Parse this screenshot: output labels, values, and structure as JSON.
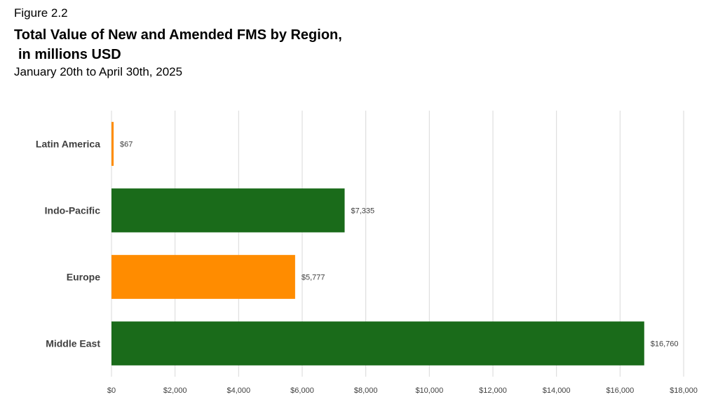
{
  "figure_label": "Figure 2.2",
  "chart_data": {
    "type": "bar",
    "orientation": "horizontal",
    "title_line1": "Total Value of New and Amended FMS by Region,",
    "title_line2": "in millions USD",
    "subtitle": "January 20th to April 30th, 2025",
    "xlabel": "",
    "ylabel": "",
    "categories": [
      "Latin America",
      "Indo-Pacific",
      "Europe",
      "Middle East"
    ],
    "values": [
      67,
      7335,
      5777,
      16760
    ],
    "data_labels": [
      "$67",
      "$7,335",
      "$5,777",
      "$16,760"
    ],
    "bar_colors": [
      "#ff8c00",
      "#1a6b1a",
      "#ff8c00",
      "#1a6b1a"
    ],
    "xlim": [
      0,
      18000
    ],
    "xticks": [
      0,
      2000,
      4000,
      6000,
      8000,
      10000,
      12000,
      14000,
      16000,
      18000
    ],
    "xtick_labels": [
      "$0",
      "$2,000",
      "$4,000",
      "$6,000",
      "$8,000",
      "$10,000",
      "$12,000",
      "$14,000",
      "$16,000",
      "$18,000"
    ],
    "grid": true,
    "legend": "none"
  }
}
